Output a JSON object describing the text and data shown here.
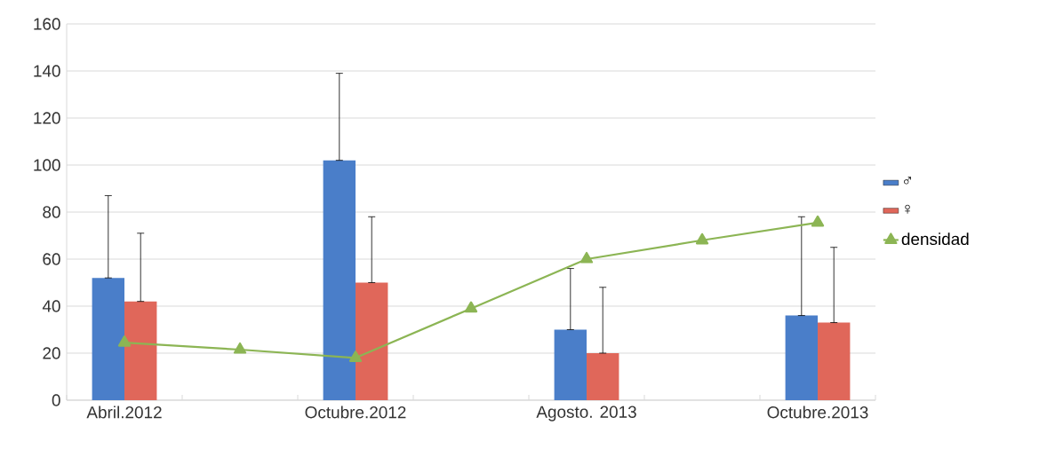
{
  "chart_data": {
    "type": "bar",
    "categories": [
      "Abril.2012",
      null,
      "Octubre.2012",
      null,
      "Agosto. 2013",
      null,
      "Octubre.2013"
    ],
    "series": [
      {
        "name": "♂",
        "color": "#4a7ec9",
        "values": [
          52,
          null,
          102,
          null,
          30,
          null,
          36
        ],
        "errors": [
          [
            52,
            87
          ],
          null,
          [
            102,
            139
          ],
          null,
          [
            30,
            56
          ],
          null,
          [
            36,
            78
          ]
        ]
      },
      {
        "name": "♀",
        "color": "#e0675a",
        "values": [
          42,
          null,
          50,
          null,
          20,
          null,
          33
        ],
        "errors": [
          [
            42,
            71
          ],
          null,
          [
            50,
            78
          ],
          null,
          [
            20,
            48
          ],
          null,
          [
            33,
            65
          ]
        ]
      },
      {
        "name": "densidad",
        "type": "line",
        "color": "#8cb554",
        "marker": "triangle",
        "values": [
          24.5,
          21.5,
          18,
          39,
          60,
          68,
          75.5
        ]
      }
    ],
    "ylim": [
      0,
      160
    ],
    "yticks": [
      0,
      20,
      40,
      60,
      80,
      100,
      120,
      140,
      160
    ],
    "grid": "y",
    "legend": "right"
  }
}
